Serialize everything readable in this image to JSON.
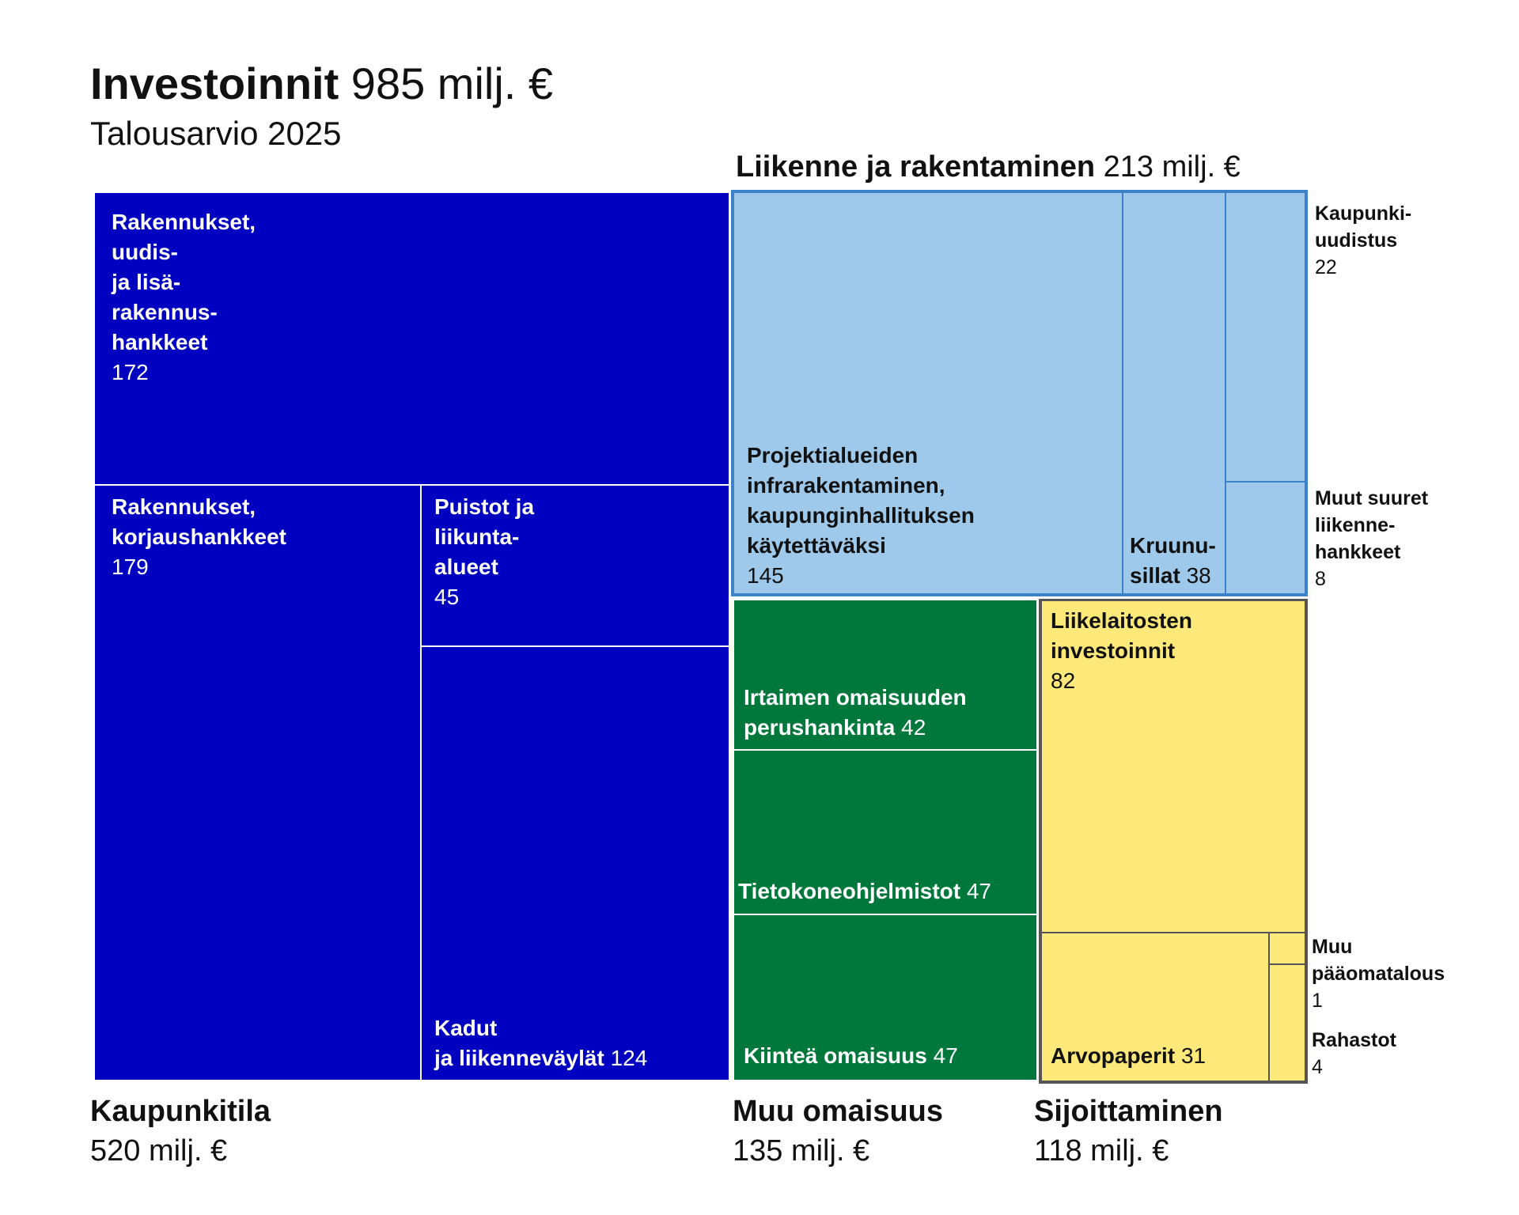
{
  "chart_data": {
    "type": "treemap",
    "title": "Investoinnit",
    "title_value": "985 milj. €",
    "subtitle": "Talousarvio 2025",
    "unit": "milj. €",
    "total": 985,
    "groups": [
      {
        "name": "Kaupunkitila",
        "total_label": "520 milj. €",
        "value": 520,
        "color": "#0000c0",
        "items": [
          {
            "name": "Rakennukset, uudis- ja lisärakennushankkeet",
            "value": 172
          },
          {
            "name": "Rakennukset, korjaushankkeet",
            "value": 179
          },
          {
            "name": "Puistot ja liikunta-alueet",
            "value": 45
          },
          {
            "name": "Kadut ja liikenneväylät",
            "value": 124
          }
        ]
      },
      {
        "name": "Liikenne ja rakentaminen",
        "total_label": "213 milj. €",
        "value": 213,
        "color": "#9fc9ea",
        "border_color": "#3b82c9",
        "items": [
          {
            "name": "Projektialueiden infrarakentaminen, kaupunginhallituksen käytettäväksi",
            "value": 145
          },
          {
            "name": "Kruunusillat",
            "value": 38
          },
          {
            "name": "Kaupunkiuudistus",
            "value": 22
          },
          {
            "name": "Muut suuret liikennehankkeet",
            "value": 8
          }
        ]
      },
      {
        "name": "Muu omaisuus",
        "total_label": "135 milj. €",
        "value": 135,
        "color": "#00783c",
        "items": [
          {
            "name": "Irtaimen omaisuuden perushankinta",
            "value": 42
          },
          {
            "name": "Tietokoneohjelmistot",
            "value": 47
          },
          {
            "name": "Kiinteä omaisuus",
            "value": 47
          }
        ]
      },
      {
        "name": "Sijoittaminen",
        "total_label": "118 milj. €",
        "value": 118,
        "color": "#fde87a",
        "border_color": "#555555",
        "items": [
          {
            "name": "Liikelaitosten investoinnit",
            "value": 82
          },
          {
            "name": "Arvopaperit",
            "value": 31
          },
          {
            "name": "Muu pääomatalous",
            "value": 1
          },
          {
            "name": "Rahastot",
            "value": 4
          }
        ]
      }
    ]
  },
  "labels": {
    "title_bold": "Investoinnit",
    "title_rest": "985 milj. €",
    "subtitle": "Talousarvio 2025",
    "g1_name": "Kaupunkitila",
    "g1_total": "520 milj. €",
    "g2_name": "Liikenne ja rakentaminen",
    "g2_total": "213 milj. €",
    "g3_name": "Muu omaisuus",
    "g3_total": "135 milj. €",
    "g4_name": "Sijoittaminen",
    "g4_total": "118 milj. €",
    "t_uudis_l1": "Rakennukset,",
    "t_uudis_l2": "uudis-",
    "t_uudis_l3": "ja lisä-",
    "t_uudis_l4": "rakennus-",
    "t_uudis_l5": "hankkeet",
    "t_uudis_v": "172",
    "t_korjaus_l1": "Rakennukset,",
    "t_korjaus_l2": "korjaushankkeet",
    "t_korjaus_v": "179",
    "t_puistot_l1": "Puistot ja",
    "t_puistot_l2": "liikunta-",
    "t_puistot_l3": "alueet",
    "t_puistot_v": "45",
    "t_kadut_l1": "Kadut",
    "t_kadut_l2": "ja liikenneväylät",
    "t_kadut_v": "124",
    "t_proj_l1": "Projektialueiden",
    "t_proj_l2": "infrarakentaminen,",
    "t_proj_l3": "kaupunginhallituksen",
    "t_proj_l4": "käytettäväksi",
    "t_proj_v": "145",
    "t_kruunu_l1": "Kruunu-",
    "t_kruunu_l2": "sillat",
    "t_kruunu_v": "38",
    "e_kaupunki_l1": "Kaupunki-",
    "e_kaupunki_l2": "uudistus",
    "e_kaupunki_v": "22",
    "e_muut_l1": "Muut suuret",
    "e_muut_l2": "liikenne-",
    "e_muut_l3": "hankkeet",
    "e_muut_v": "8",
    "t_irtain_l1": "Irtaimen omaisuuden",
    "t_irtain_l2": "perushankinta",
    "t_irtain_v": "42",
    "t_tieto_l1": "Tietokoneohjelmistot",
    "t_tieto_v": "47",
    "t_kiintea_l1": "Kiinteä omaisuus",
    "t_kiintea_v": "47",
    "t_liike_l1": "Liikelaitosten",
    "t_liike_l2": "investoinnit",
    "t_liike_v": "82",
    "t_arvo_l1": "Arvopaperit",
    "t_arvo_v": "31",
    "e_muupaa_l1": "Muu",
    "e_muupaa_l2": "pääomatalous",
    "e_muupaa_v": "1",
    "e_rahastot_l1": "Rahastot",
    "e_rahastot_v": "4"
  }
}
